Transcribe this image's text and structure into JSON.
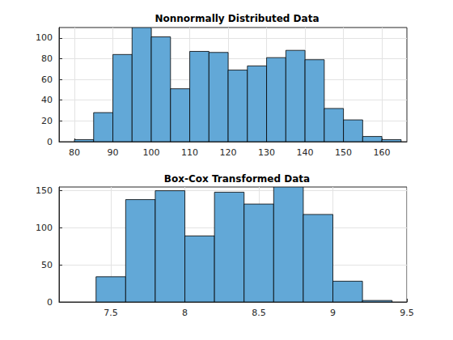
{
  "chart_data": [
    {
      "type": "histogram",
      "title": "Nonnormally Distributed Data",
      "bins": [
        80,
        85,
        90,
        95,
        100,
        105,
        110,
        115,
        120,
        125,
        130,
        135,
        140,
        145,
        150,
        155,
        160,
        165
      ],
      "values": [
        2,
        28,
        84,
        110,
        101,
        51,
        87,
        86,
        69,
        73,
        81,
        88,
        79,
        32,
        21,
        5,
        2
      ],
      "color": "#62a8d7",
      "xlim": [
        76,
        166.5
      ],
      "xticks": [
        80,
        90,
        100,
        110,
        120,
        130,
        140,
        150,
        160
      ],
      "ylim": [
        0,
        110
      ],
      "yticks": [
        0,
        20,
        40,
        60,
        80,
        100
      ],
      "grid": true
    },
    {
      "type": "histogram",
      "title": "Box-Cox Transformed Data",
      "bins": [
        7.4,
        7.6,
        7.8,
        8.0,
        8.2,
        8.4,
        8.6,
        8.8,
        9.0,
        9.2,
        9.4
      ],
      "values": [
        34,
        138,
        150,
        89,
        148,
        132,
        155,
        118,
        28,
        2
      ],
      "color": "#62a8d7",
      "xlim": [
        7.15,
        9.5
      ],
      "xticks": [
        7.5,
        8,
        8.5,
        9,
        9.5
      ],
      "ylim": [
        0,
        155
      ],
      "yticks": [
        0,
        50,
        100,
        150
      ],
      "grid": true
    }
  ]
}
